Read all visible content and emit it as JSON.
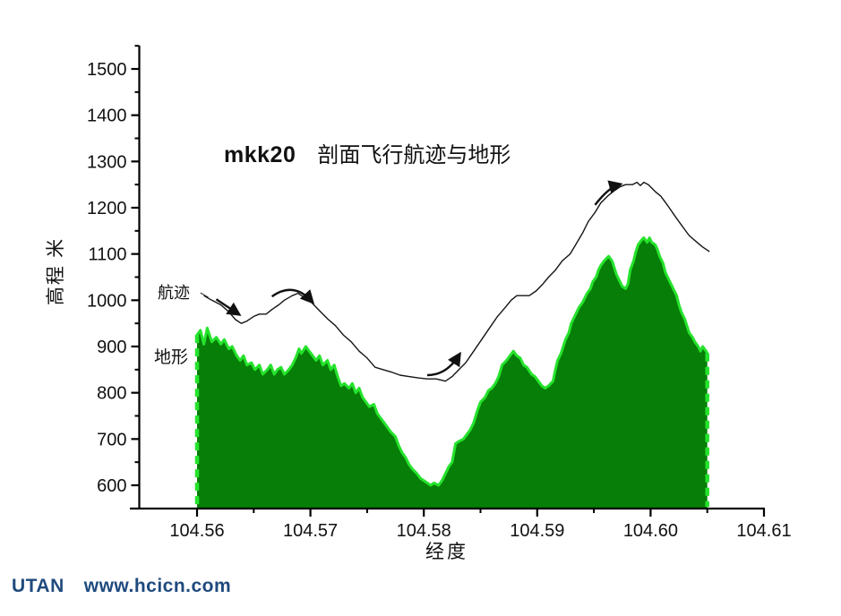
{
  "footer": {
    "brand": "UTAN",
    "url": "www.hcicn.com",
    "color": "#1f4a7d"
  },
  "chart_data": {
    "type": "area",
    "title": {
      "bold": "mkk20",
      "rest": "剖面飞行航迹与地形"
    },
    "xlabel": "经度",
    "ylabel": "高程 米",
    "grid": false,
    "legend": "inline-annotations",
    "x_axis": {
      "range_shown": [
        104.5541,
        104.61
      ],
      "major_ticks": [
        104.56,
        104.57,
        104.58,
        104.59,
        104.6,
        104.61
      ],
      "tick_labels": [
        "104.56",
        "104.57",
        "104.58",
        "104.59",
        "104.60",
        "104.61"
      ],
      "minor_ticks": [
        104.565,
        104.575,
        104.585,
        104.595,
        104.605
      ]
    },
    "y_axis": {
      "range_shown": [
        550,
        1550
      ],
      "major_ticks": [
        600,
        700,
        800,
        900,
        1000,
        1100,
        1200,
        1300,
        1400,
        1500
      ],
      "tick_labels": [
        "600",
        "700",
        "800",
        "900",
        "1000",
        "1100",
        "1200",
        "1300",
        "1400",
        "1500"
      ],
      "minor_ticks": [
        650,
        750,
        850,
        950,
        1050,
        1150,
        1250,
        1350,
        1450,
        1550
      ]
    },
    "series": [
      {
        "name": "地形",
        "type": "area",
        "fill_color": "#077e07",
        "edge_color": "#25e32c",
        "points": [
          [
            104.56,
            925
          ],
          [
            104.5603,
            935
          ],
          [
            104.5606,
            905
          ],
          [
            104.5609,
            940
          ],
          [
            104.5613,
            910
          ],
          [
            104.5617,
            920
          ],
          [
            104.5621,
            905
          ],
          [
            104.5624,
            915
          ],
          [
            104.5628,
            895
          ],
          [
            104.5631,
            900
          ],
          [
            104.5635,
            880
          ],
          [
            104.5638,
            870
          ],
          [
            104.5641,
            880
          ],
          [
            104.5644,
            860
          ],
          [
            104.5648,
            865
          ],
          [
            104.5651,
            850
          ],
          [
            104.5655,
            860
          ],
          [
            104.5658,
            840
          ],
          [
            104.5662,
            850
          ],
          [
            104.5665,
            860
          ],
          [
            104.5668,
            840
          ],
          [
            104.5671,
            850
          ],
          [
            104.5674,
            855
          ],
          [
            104.5677,
            840
          ],
          [
            104.5681,
            850
          ],
          [
            104.5684,
            860
          ],
          [
            104.5687,
            875
          ],
          [
            104.569,
            895
          ],
          [
            104.5692,
            885
          ],
          [
            104.5696,
            900
          ],
          [
            104.5699,
            890
          ],
          [
            104.5702,
            880
          ],
          [
            104.5705,
            870
          ],
          [
            104.5708,
            880
          ],
          [
            104.5711,
            860
          ],
          [
            104.5715,
            870
          ],
          [
            104.5718,
            850
          ],
          [
            104.5721,
            860
          ],
          [
            104.5724,
            835
          ],
          [
            104.5727,
            815
          ],
          [
            104.573,
            820
          ],
          [
            104.5734,
            810
          ],
          [
            104.5737,
            820
          ],
          [
            104.574,
            800
          ],
          [
            104.5743,
            810
          ],
          [
            104.5746,
            790
          ],
          [
            104.5749,
            780
          ],
          [
            104.5752,
            770
          ],
          [
            104.5756,
            775
          ],
          [
            104.5759,
            755
          ],
          [
            104.5762,
            745
          ],
          [
            104.5765,
            735
          ],
          [
            104.5768,
            725
          ],
          [
            104.5771,
            715
          ],
          [
            104.5775,
            705
          ],
          [
            104.5778,
            685
          ],
          [
            104.5781,
            670
          ],
          [
            104.5784,
            660
          ],
          [
            104.5787,
            645
          ],
          [
            104.579,
            635
          ],
          [
            104.5794,
            625
          ],
          [
            104.5797,
            615
          ],
          [
            104.58,
            610
          ],
          [
            104.5803,
            605
          ],
          [
            104.5806,
            600
          ],
          [
            104.5809,
            605
          ],
          [
            104.5813,
            600
          ],
          [
            104.5816,
            610
          ],
          [
            104.5819,
            625
          ],
          [
            104.5822,
            640
          ],
          [
            104.5825,
            650
          ],
          [
            104.5828,
            690
          ],
          [
            104.5831,
            695
          ],
          [
            104.5835,
            700
          ],
          [
            104.5838,
            710
          ],
          [
            104.5841,
            720
          ],
          [
            104.5844,
            735
          ],
          [
            104.5847,
            760
          ],
          [
            104.585,
            780
          ],
          [
            104.5854,
            790
          ],
          [
            104.5857,
            805
          ],
          [
            104.586,
            810
          ],
          [
            104.5863,
            820
          ],
          [
            104.5866,
            835
          ],
          [
            104.5869,
            860
          ],
          [
            104.5873,
            870
          ],
          [
            104.5876,
            880
          ],
          [
            104.5879,
            890
          ],
          [
            104.5882,
            880
          ],
          [
            104.5885,
            875
          ],
          [
            104.5888,
            860
          ],
          [
            104.5891,
            855
          ],
          [
            104.5895,
            840
          ],
          [
            104.5898,
            835
          ],
          [
            104.5901,
            825
          ],
          [
            104.5904,
            815
          ],
          [
            104.5907,
            810
          ],
          [
            104.591,
            815
          ],
          [
            104.5914,
            825
          ],
          [
            104.5916,
            850
          ],
          [
            104.5918,
            870
          ],
          [
            104.5921,
            885
          ],
          [
            104.5923,
            900
          ],
          [
            104.5925,
            915
          ],
          [
            104.5928,
            930
          ],
          [
            104.593,
            950
          ],
          [
            104.5933,
            965
          ],
          [
            104.5935,
            975
          ],
          [
            104.5937,
            985
          ],
          [
            104.594,
            995
          ],
          [
            104.5942,
            1005
          ],
          [
            104.5944,
            1015
          ],
          [
            104.5947,
            1025
          ],
          [
            104.5949,
            1040
          ],
          [
            104.5952,
            1050
          ],
          [
            104.5954,
            1065
          ],
          [
            104.5956,
            1075
          ],
          [
            104.5959,
            1085
          ],
          [
            104.5961,
            1090
          ],
          [
            104.5963,
            1095
          ],
          [
            104.5966,
            1085
          ],
          [
            104.5968,
            1070
          ],
          [
            104.597,
            1055
          ],
          [
            104.5973,
            1040
          ],
          [
            104.5975,
            1030
          ],
          [
            104.5978,
            1025
          ],
          [
            104.598,
            1035
          ],
          [
            104.5982,
            1065
          ],
          [
            104.5985,
            1085
          ],
          [
            104.5987,
            1105
          ],
          [
            104.5989,
            1120
          ],
          [
            104.5992,
            1130
          ],
          [
            104.5994,
            1135
          ],
          [
            104.5997,
            1125
          ],
          [
            104.5999,
            1135
          ],
          [
            104.6001,
            1125
          ],
          [
            104.6004,
            1120
          ],
          [
            104.6006,
            1110
          ],
          [
            104.6008,
            1095
          ],
          [
            104.6011,
            1080
          ],
          [
            104.6013,
            1060
          ],
          [
            104.6015,
            1050
          ],
          [
            104.6018,
            1035
          ],
          [
            104.602,
            1025
          ],
          [
            104.6023,
            1010
          ],
          [
            104.6025,
            990
          ],
          [
            104.6027,
            975
          ],
          [
            104.603,
            960
          ],
          [
            104.6032,
            945
          ],
          [
            104.6034,
            930
          ],
          [
            104.6037,
            920
          ],
          [
            104.6039,
            910
          ],
          [
            104.6042,
            900
          ],
          [
            104.6044,
            890
          ],
          [
            104.6046,
            900
          ],
          [
            104.6049,
            890
          ],
          [
            104.605,
            885
          ]
        ]
      },
      {
        "name": "航迹",
        "type": "line",
        "color": "#151515",
        "points": [
          [
            104.5606,
            1010
          ],
          [
            104.5613,
            1000
          ],
          [
            104.5621,
            990
          ],
          [
            104.5628,
            975
          ],
          [
            104.5634,
            958
          ],
          [
            104.5639,
            950
          ],
          [
            104.5644,
            955
          ],
          [
            104.565,
            965
          ],
          [
            104.5655,
            970
          ],
          [
            104.5661,
            970
          ],
          [
            104.5666,
            980
          ],
          [
            104.5672,
            990
          ],
          [
            104.5677,
            1000
          ],
          [
            104.5684,
            1010
          ],
          [
            104.5689,
            1015
          ],
          [
            104.5695,
            1005
          ],
          [
            104.5701,
            995
          ],
          [
            104.5707,
            980
          ],
          [
            104.5715,
            960
          ],
          [
            104.5722,
            945
          ],
          [
            104.5729,
            925
          ],
          [
            104.5736,
            910
          ],
          [
            104.5743,
            890
          ],
          [
            104.575,
            875
          ],
          [
            104.5757,
            855
          ],
          [
            104.5764,
            850
          ],
          [
            104.5771,
            845
          ],
          [
            104.5779,
            838
          ],
          [
            104.5787,
            835
          ],
          [
            104.5795,
            832
          ],
          [
            104.5803,
            830
          ],
          [
            104.5811,
            830
          ],
          [
            104.5819,
            825
          ],
          [
            104.5825,
            835
          ],
          [
            104.5831,
            850
          ],
          [
            104.5837,
            865
          ],
          [
            104.5844,
            890
          ],
          [
            104.5851,
            915
          ],
          [
            104.5858,
            940
          ],
          [
            104.5865,
            965
          ],
          [
            104.5872,
            985
          ],
          [
            104.5877,
            1000
          ],
          [
            104.5882,
            1010
          ],
          [
            104.5888,
            1010
          ],
          [
            104.5893,
            1010
          ],
          [
            104.5899,
            1020
          ],
          [
            104.5905,
            1035
          ],
          [
            104.591,
            1050
          ],
          [
            104.5916,
            1065
          ],
          [
            104.5922,
            1085
          ],
          [
            104.5929,
            1100
          ],
          [
            104.5934,
            1120
          ],
          [
            104.594,
            1145
          ],
          [
            104.5945,
            1170
          ],
          [
            104.5951,
            1190
          ],
          [
            104.5956,
            1210
          ],
          [
            104.5962,
            1225
          ],
          [
            104.5967,
            1235
          ],
          [
            104.5973,
            1245
          ],
          [
            104.5978,
            1250
          ],
          [
            104.5984,
            1250
          ],
          [
            104.5988,
            1255
          ],
          [
            104.5991,
            1248
          ],
          [
            104.5994,
            1255
          ],
          [
            104.5998,
            1250
          ],
          [
            104.6004,
            1235
          ],
          [
            104.6009,
            1225
          ],
          [
            104.6015,
            1205
          ],
          [
            104.6022,
            1180
          ],
          [
            104.6028,
            1160
          ],
          [
            104.6034,
            1140
          ],
          [
            104.6041,
            1125
          ],
          [
            104.6046,
            1115
          ],
          [
            104.6052,
            1105
          ]
        ]
      }
    ],
    "annotations": {
      "flight_label": "航迹",
      "terrain_label": "地形",
      "leader": [
        [
          104.5603,
          1016
        ],
        [
          104.561,
          1006
        ]
      ],
      "arrows": [
        {
          "points": [
            [
              104.5617,
              1002
            ],
            [
              104.5636,
              971
            ]
          ]
        },
        {
          "points": [
            [
              104.5666,
              1008
            ],
            [
              104.5685,
              1041
            ],
            [
              104.5701,
              998
            ]
          ]
        },
        {
          "points": [
            [
              104.5803,
              838
            ],
            [
              104.582,
              838
            ],
            [
              104.5831,
              881
            ]
          ]
        },
        {
          "points": [
            [
              104.5951,
              1206
            ],
            [
              104.5963,
              1244
            ],
            [
              104.5972,
              1250
            ]
          ]
        }
      ]
    }
  }
}
